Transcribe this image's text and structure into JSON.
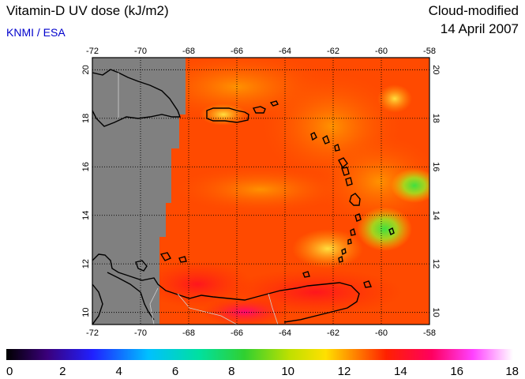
{
  "header": {
    "title": "Vitamin-D UV dose (kJ/m2)",
    "credit": "KNMI / ESA",
    "product": "Cloud-modified",
    "date": "14 April 2007",
    "credit_color": "#0000cc"
  },
  "map": {
    "lon_labels_top": [
      "-72",
      "-70",
      "-68",
      "-66",
      "-64",
      "-62",
      "-60",
      "-58"
    ],
    "lon_labels_bottom": [
      "-72",
      "-70",
      "-68",
      "-66",
      "-64",
      "-62",
      "-60",
      "-58"
    ],
    "lat_labels": [
      "20",
      "18",
      "16",
      "14",
      "12",
      "10"
    ],
    "lon_range": [
      -72,
      -58
    ],
    "lat_range": [
      9.5,
      20.5
    ],
    "no_data_color": "#808080",
    "coastline_color": "#000000",
    "border_color": "#cccccc",
    "grid_style": "dotted"
  },
  "colorbar": {
    "labels": [
      "0",
      "2",
      "4",
      "6",
      "8",
      "10",
      "12",
      "14",
      "16",
      "18"
    ],
    "range": [
      0,
      18
    ],
    "colors": [
      "#000000",
      "#3a007a",
      "#2020ff",
      "#00c0ff",
      "#00e0a0",
      "#30d030",
      "#c0e000",
      "#ffe000",
      "#ff8000",
      "#ff2000",
      "#ff0060",
      "#ff40ff",
      "#ffffff"
    ]
  }
}
